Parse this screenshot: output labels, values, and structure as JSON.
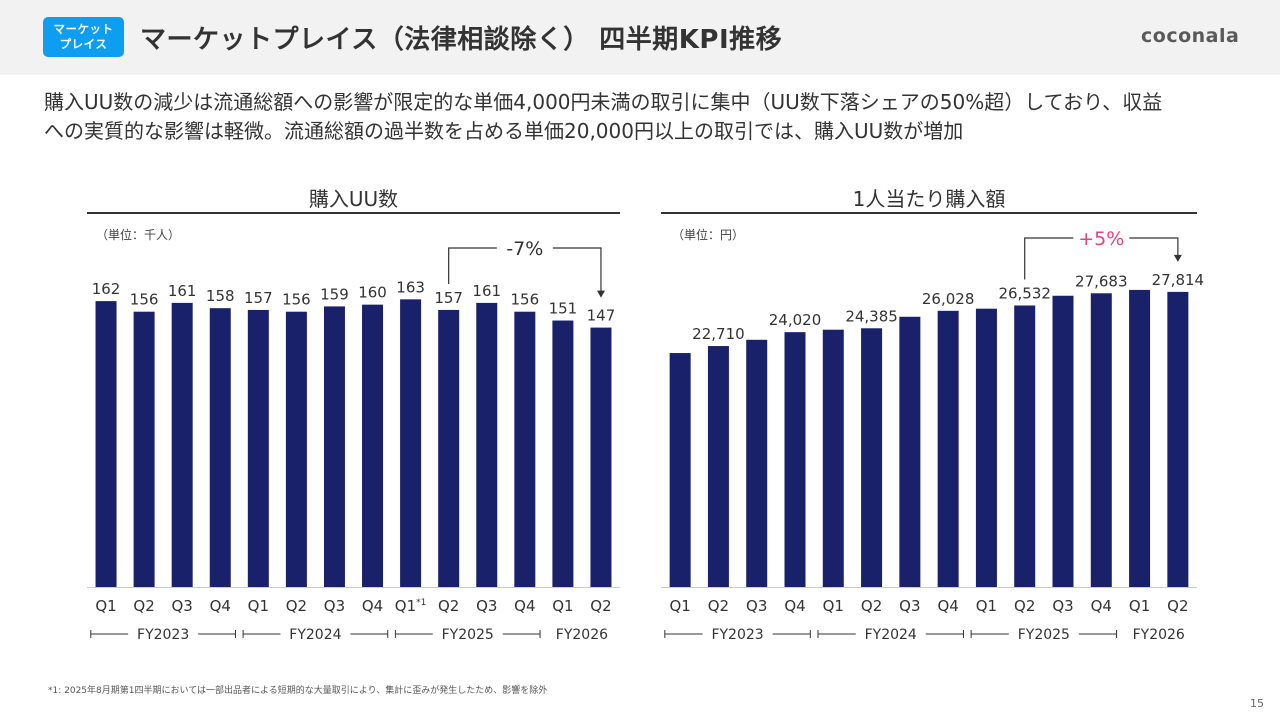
{
  "header": {
    "badge": [
      "マーケット",
      "プレイス"
    ],
    "title": "マーケットプレイス（法律相談除く） 四半期KPI推移",
    "logo": "coconala"
  },
  "lead": {
    "line1": "購入UU数の減少は流通総額への影響が限定的な単価4,000円未満の取引に集中（UU数下落シェアの50%超）しており、収益",
    "line2": "への実質的な影響は軽微。流通総額の過半数を占める単価20,000円以上の取引では、購入UU数が増加"
  },
  "colors": {
    "bar": "#1a216b",
    "accent_pink": "#e8418a",
    "text": "#333333"
  },
  "chart_data": [
    {
      "type": "bar",
      "title": "購入UU数",
      "unit": "（単位：千人）",
      "categories": [
        "Q1",
        "Q2",
        "Q3",
        "Q4",
        "Q1",
        "Q2",
        "Q3",
        "Q4",
        "Q1*1",
        "Q2",
        "Q3",
        "Q4",
        "Q1",
        "Q2"
      ],
      "fiscal_years": [
        "FY2023",
        "FY2024",
        "FY2025",
        "FY2026"
      ],
      "values": [
        162,
        156,
        161,
        158,
        157,
        156,
        159,
        160,
        163,
        157,
        161,
        156,
        151,
        147
      ],
      "data_labels": [
        "162",
        "156",
        "161",
        "158",
        "157",
        "156",
        "159",
        "160",
        "163",
        "157",
        "161",
        "156",
        "151",
        "147"
      ],
      "ylim": [
        0,
        170
      ],
      "annotation": {
        "text": "-7%",
        "from_index": 9,
        "to_index": 13,
        "color": "#333333"
      }
    },
    {
      "type": "bar",
      "title": "1人当たり購入額",
      "unit": "（単位：円）",
      "categories": [
        "Q1",
        "Q2",
        "Q3",
        "Q4",
        "Q1",
        "Q2",
        "Q3",
        "Q4",
        "Q1",
        "Q2",
        "Q3",
        "Q4",
        "Q1",
        "Q2"
      ],
      "fiscal_years": [
        "FY2023",
        "FY2024",
        "FY2025",
        "FY2026"
      ],
      "values": [
        22050,
        22710,
        23300,
        24020,
        24250,
        24385,
        25470,
        26028,
        26230,
        26532,
        27450,
        27683,
        28000,
        27814
      ],
      "data_labels": [
        "",
        "22,710",
        "",
        "24,020",
        "",
        "24,385",
        "",
        "26,028",
        "",
        "26,532",
        "",
        "27,683",
        "",
        "27,814"
      ],
      "ylim": [
        0,
        29500
      ],
      "annotation": {
        "text": "+5%",
        "from_index": 9,
        "to_index": 13,
        "color": "#e8418a"
      }
    }
  ],
  "footnote": "*1: 2025年8月期第1四半期においては一部出品者による短期的な大量取引により、集計に歪みが発生したため、影響を除外",
  "page_number": "15"
}
